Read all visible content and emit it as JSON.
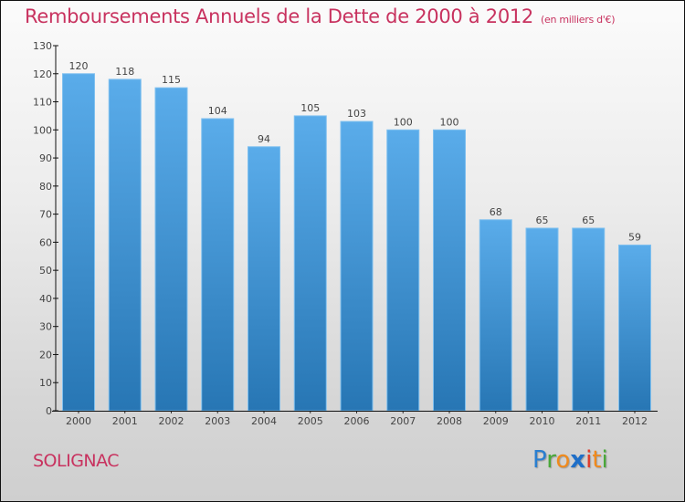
{
  "header": {
    "title": "Remboursements Annuels de la Dette de 2000 à 2012",
    "unit": "(en milliers d'€)"
  },
  "footer": {
    "city": "SOLIGNAC",
    "logo_letters": [
      {
        "char": "P",
        "color": "#2a7fd0"
      },
      {
        "char": "r",
        "color": "#4aa83a"
      },
      {
        "char": "o",
        "color": "#f08a1c"
      },
      {
        "char": "x",
        "color": "#1f6fc8"
      },
      {
        "char": "i",
        "color": "#e03a2a"
      },
      {
        "char": "t",
        "color": "#f08a1c"
      },
      {
        "char": "i",
        "color": "#4aa83a"
      }
    ]
  },
  "colors": {
    "title": "#c8325f",
    "bar_top": "#5aacea",
    "bar_bottom": "#2776b4"
  },
  "chart_data": {
    "type": "bar",
    "title": "Remboursements Annuels de la Dette de 2000 à 2012 (en milliers d'€)",
    "xlabel": "",
    "ylabel": "",
    "categories": [
      "2000",
      "2001",
      "2002",
      "2003",
      "2004",
      "2005",
      "2006",
      "2007",
      "2008",
      "2009",
      "2010",
      "2011",
      "2012"
    ],
    "values": [
      120,
      118,
      115,
      104,
      94,
      105,
      103,
      100,
      100,
      68,
      65,
      65,
      59
    ],
    "ylim": [
      0,
      130
    ],
    "yticks": [
      0,
      10,
      20,
      30,
      40,
      50,
      60,
      70,
      80,
      90,
      100,
      110,
      120,
      130
    ],
    "grid": false,
    "legend": "none",
    "data_labels": true
  }
}
